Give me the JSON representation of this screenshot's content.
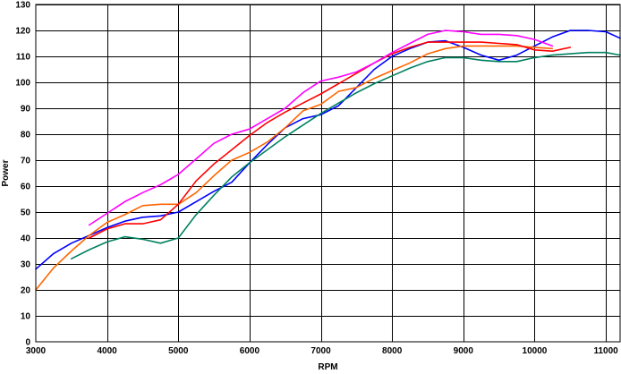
{
  "chart_data": {
    "type": "line",
    "title": "",
    "xlabel": "RPM",
    "ylabel": "Power",
    "xlim": [
      3000,
      11200
    ],
    "ylim": [
      0,
      130
    ],
    "x_ticks": [
      3000,
      4000,
      5000,
      6000,
      7000,
      8000,
      9000,
      10000,
      11000
    ],
    "y_ticks": [
      0,
      10,
      20,
      30,
      40,
      50,
      60,
      70,
      80,
      90,
      100,
      110,
      120,
      130
    ],
    "grid": true,
    "legend": "none",
    "series": [
      {
        "color": "#0000ff",
        "x": [
          3000,
          3250,
          3500,
          3750,
          4000,
          4250,
          4500,
          4750,
          5000,
          5250,
          5500,
          5750,
          6000,
          6250,
          6500,
          6750,
          7000,
          7250,
          7500,
          7750,
          8000,
          8250,
          8500,
          8750,
          9000,
          9250,
          9500,
          9750,
          10000,
          10250,
          10500,
          10750,
          11000,
          11200
        ],
        "y": [
          28,
          34,
          38,
          41,
          44,
          46.5,
          48,
          48.5,
          50,
          54,
          58,
          61.5,
          69,
          76,
          82.5,
          86,
          87.5,
          91,
          98,
          105,
          110,
          113,
          115.5,
          116,
          113.5,
          110.5,
          108.5,
          110.5,
          114,
          117.5,
          120,
          120,
          119.5,
          117
        ]
      },
      {
        "color": "#ff6600",
        "x": [
          3000,
          3250,
          3500,
          3750,
          4000,
          4250,
          4500,
          4750,
          5000,
          5250,
          5500,
          5750,
          6000,
          6250,
          6500,
          6750,
          7000,
          7250,
          7500,
          7750,
          8000,
          8250,
          8500,
          8750,
          9000,
          9250,
          9500,
          9750,
          10000,
          10250
        ],
        "y": [
          20,
          28.5,
          35,
          41,
          46,
          49,
          52.5,
          53,
          53,
          57.5,
          64,
          70,
          73,
          77,
          82.5,
          89,
          91.5,
          96.5,
          98,
          101.5,
          104.5,
          107.5,
          111,
          113,
          114,
          114,
          114,
          114,
          113.5,
          113
        ]
      },
      {
        "color": "#ff0000",
        "x": [
          3750,
          4000,
          4250,
          4500,
          4750,
          5000,
          5250,
          5500,
          5750,
          6000,
          6250,
          6500,
          6750,
          7000,
          7250,
          7500,
          7750,
          8000,
          8250,
          8500,
          8750,
          9000,
          9250,
          9500,
          9750,
          10000,
          10250,
          10500
        ],
        "y": [
          40,
          43.5,
          45.5,
          45.5,
          47,
          53,
          62,
          68.5,
          74,
          79.5,
          84.5,
          88.5,
          92,
          95.5,
          99.5,
          103.5,
          107.5,
          111,
          113.5,
          115.5,
          115.5,
          115.5,
          115.5,
          115,
          114.5,
          112.5,
          112,
          113.5
        ]
      },
      {
        "color": "#ff00ff",
        "x": [
          3750,
          4000,
          4250,
          4500,
          4750,
          5000,
          5250,
          5500,
          5750,
          6000,
          6250,
          6500,
          6750,
          7000,
          7250,
          7500,
          7750,
          8000,
          8250,
          8500,
          8750,
          9000,
          9250,
          9500,
          9750,
          10000,
          10250
        ],
        "y": [
          45,
          49.5,
          54,
          57.5,
          60.5,
          64.5,
          70.5,
          76.5,
          80,
          82,
          86,
          90,
          96,
          100.5,
          102,
          104,
          107.5,
          111.5,
          115,
          118.5,
          120,
          119.5,
          118.5,
          118.5,
          118,
          116.5,
          114
        ]
      },
      {
        "color": "#008060",
        "x": [
          3500,
          3750,
          4000,
          4250,
          4500,
          4750,
          5000,
          5250,
          5500,
          5750,
          6000,
          6250,
          6500,
          6750,
          7000,
          7250,
          7500,
          7750,
          8000,
          8250,
          8500,
          8750,
          9000,
          9250,
          9500,
          9750,
          10000,
          10250,
          10500,
          10750,
          11000,
          11200
        ],
        "y": [
          32,
          35.5,
          38.5,
          40.5,
          39.5,
          38,
          40,
          49,
          56.5,
          63.5,
          69,
          74,
          79,
          83.5,
          88,
          92,
          96,
          99.5,
          102.5,
          105.5,
          108,
          109.5,
          109.5,
          108.5,
          108,
          108,
          109.5,
          110.5,
          111,
          111.5,
          111.5,
          110.5
        ]
      }
    ]
  }
}
